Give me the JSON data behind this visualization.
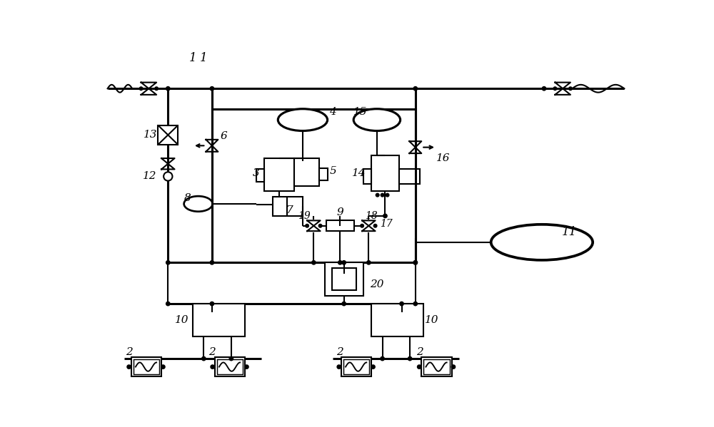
{
  "bg_color": "#ffffff",
  "line_color": "#000000",
  "lw": 1.5,
  "lw2": 2.2,
  "fig_width": 10.0,
  "fig_height": 5.99
}
